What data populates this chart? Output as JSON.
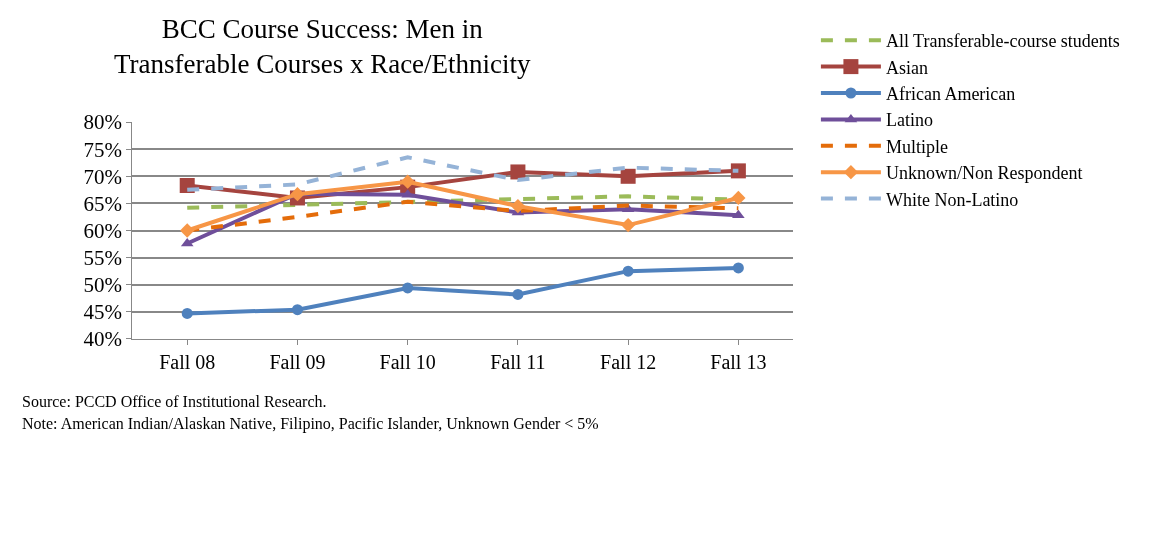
{
  "chart_data": {
    "type": "line",
    "title": "BCC Course Success: Men in\nTransferable Courses x Race/Ethnicity",
    "categories": [
      "Fall 08",
      "Fall 09",
      "Fall 10",
      "Fall 11",
      "Fall 12",
      "Fall 13"
    ],
    "ylim": [
      40,
      80
    ],
    "yticks": [
      {
        "value": 40,
        "label": "40%"
      },
      {
        "value": 45,
        "label": "45%"
      },
      {
        "value": 50,
        "label": "50%"
      },
      {
        "value": 55,
        "label": "55%"
      },
      {
        "value": 60,
        "label": "60%"
      },
      {
        "value": 65,
        "label": "65%"
      },
      {
        "value": 70,
        "label": "70%"
      },
      {
        "value": 75,
        "label": "75%"
      },
      {
        "value": 80,
        "label": "80%"
      }
    ],
    "grid": "y",
    "legend": "right",
    "series": [
      {
        "name": "All Transferable-course students",
        "color": "#9bbb59",
        "line_style": "dashed",
        "marker": "none",
        "values": [
          64.2,
          null,
          null,
          65.8,
          66.3,
          65.7
        ]
      },
      {
        "name": "Asian",
        "color": "#a5443f",
        "line_style": "solid",
        "marker": "square",
        "values": [
          68.3,
          66.0,
          68.0,
          70.8,
          70.0,
          71.0
        ]
      },
      {
        "name": "African American",
        "color": "#4f81bd",
        "line_style": "solid",
        "marker": "circle",
        "values": [
          44.7,
          45.4,
          49.4,
          48.2,
          52.5,
          53.1
        ]
      },
      {
        "name": "Latino",
        "color": "#6f4f9a",
        "line_style": "solid",
        "marker": "triangle",
        "values": [
          57.6,
          66.8,
          66.6,
          63.3,
          63.9,
          62.8
        ]
      },
      {
        "name": "Multiple",
        "color": "#e46c0a",
        "line_style": "dashed",
        "marker": "none",
        "values": [
          60.0,
          62.5,
          65.3,
          63.6,
          64.6,
          64.1
        ]
      },
      {
        "name": "Unknown/Non Respondent",
        "color": "#f79646",
        "line_style": "solid",
        "marker": "diamond",
        "values": [
          60.0,
          66.7,
          69.0,
          64.5,
          61.0,
          66.0
        ]
      },
      {
        "name": "White Non-Latino",
        "color": "#95b3d7",
        "line_style": "dashed",
        "marker": "none",
        "values": [
          67.5,
          68.5,
          73.5,
          69.3,
          71.6,
          71.0
        ]
      }
    ],
    "annotations": [
      "Source: PCCD Office of Institutional Research.",
      "Note: American Indian/Alaskan Native, Filipino, Pacific Islander, Unknown Gender < 5%"
    ]
  }
}
